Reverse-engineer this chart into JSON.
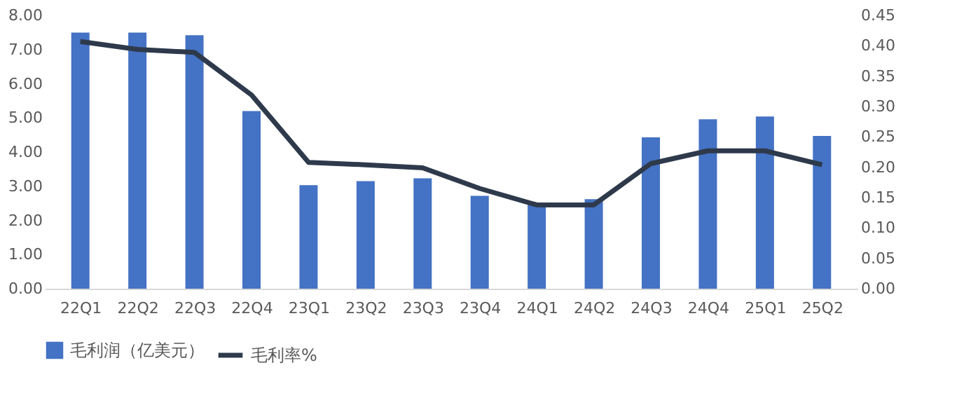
{
  "chart_data": {
    "type": "bar",
    "categories": [
      "22Q1",
      "22Q2",
      "22Q3",
      "22Q4",
      "23Q1",
      "23Q2",
      "23Q3",
      "23Q4",
      "24Q1",
      "24Q2",
      "24Q3",
      "24Q4",
      "25Q1",
      "25Q2"
    ],
    "series": [
      {
        "name": "毛利润（亿美元）",
        "color": "#4472c4",
        "values": [
          7.5,
          7.5,
          7.42,
          5.2,
          3.03,
          3.15,
          3.23,
          2.72,
          2.46,
          2.62,
          4.43,
          4.96,
          5.04,
          4.47
        ]
      },
      {
        "name": "毛利率%",
        "type": "line",
        "axis": "y2",
        "color": "#2e3a4b",
        "values": [
          0.407,
          0.394,
          0.389,
          0.319,
          0.208,
          0.204,
          0.199,
          0.165,
          0.138,
          0.138,
          0.206,
          0.227,
          0.227,
          0.204
        ]
      }
    ],
    "ylim": [
      0,
      8
    ],
    "yticks": [
      {
        "value": 0,
        "label": "0.00"
      },
      {
        "value": 1,
        "label": "1.00"
      },
      {
        "value": 2,
        "label": "2.00"
      },
      {
        "value": 3,
        "label": "3.00"
      },
      {
        "value": 4,
        "label": "4.00"
      },
      {
        "value": 5,
        "label": "5.00"
      },
      {
        "value": 6,
        "label": "6.00"
      },
      {
        "value": 7,
        "label": "7.00"
      },
      {
        "value": 8,
        "label": "8.00"
      }
    ],
    "y2lim": [
      0,
      0.45
    ],
    "y2ticks": [
      {
        "value": 0,
        "label": "0.00"
      },
      {
        "value": 0.05,
        "label": "0.05"
      },
      {
        "value": 0.1,
        "label": "0.10"
      },
      {
        "value": 0.15,
        "label": "0.15"
      },
      {
        "value": 0.2,
        "label": "0.20"
      },
      {
        "value": 0.25,
        "label": "0.25"
      },
      {
        "value": 0.3,
        "label": "0.30"
      },
      {
        "value": 0.35,
        "label": "0.35"
      },
      {
        "value": 0.4,
        "label": "0.40"
      },
      {
        "value": 0.45,
        "label": "0.45"
      }
    ],
    "grid": false,
    "legend": "bottom",
    "line_style": "solid",
    "marker": "none"
  }
}
